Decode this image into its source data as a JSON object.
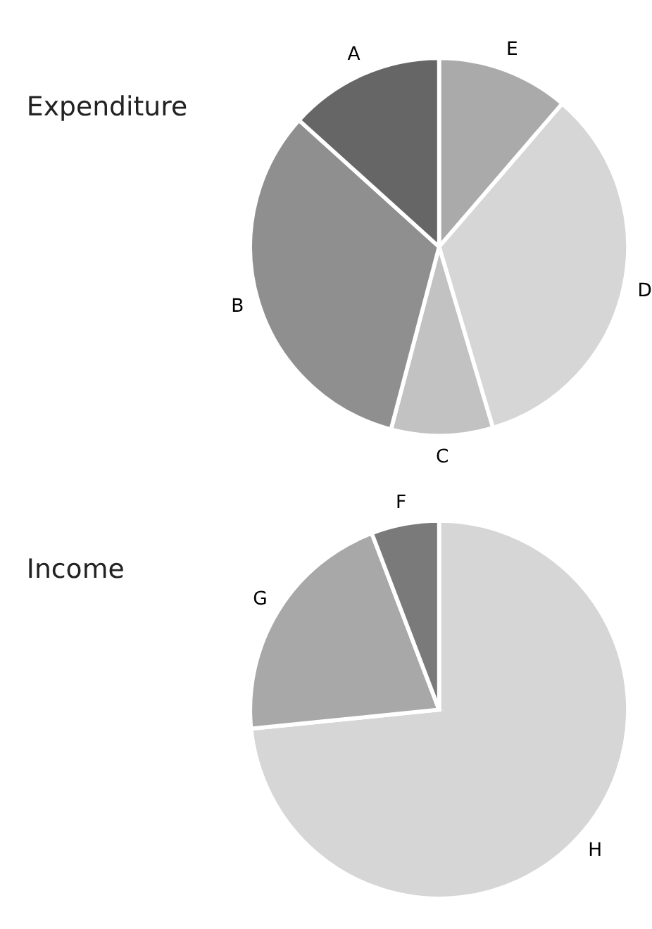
{
  "chart_data": [
    {
      "type": "pie",
      "title": "Expenditure",
      "categories": [
        "E",
        "D",
        "C",
        "B",
        "A"
      ],
      "values": [
        11.3,
        34.1,
        8.7,
        32.6,
        13.3
      ],
      "colors": [
        "#aaaaaa",
        "#d6d6d6",
        "#c2c2c2",
        "#8f8f8f",
        "#666666"
      ]
    },
    {
      "type": "pie",
      "title": "Income",
      "categories": [
        "H",
        "G",
        "F"
      ],
      "values": [
        73.4,
        20.8,
        5.8
      ],
      "colors": [
        "#d6d6d6",
        "#a8a8a8",
        "#7a7a7a"
      ]
    }
  ]
}
